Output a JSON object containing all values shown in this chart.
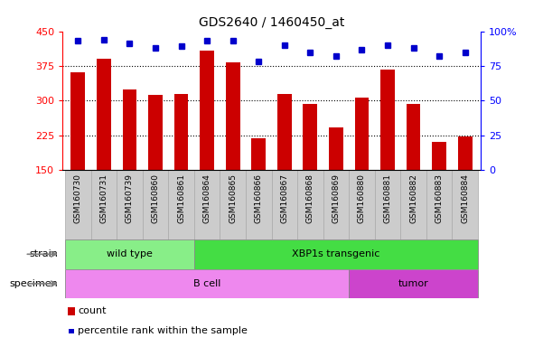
{
  "title": "GDS2640 / 1460450_at",
  "samples": [
    "GSM160730",
    "GSM160731",
    "GSM160739",
    "GSM160860",
    "GSM160861",
    "GSM160864",
    "GSM160865",
    "GSM160866",
    "GSM160867",
    "GSM160868",
    "GSM160869",
    "GSM160880",
    "GSM160881",
    "GSM160882",
    "GSM160883",
    "GSM160884"
  ],
  "counts": [
    362,
    390,
    325,
    312,
    315,
    408,
    382,
    218,
    315,
    293,
    242,
    307,
    368,
    292,
    210,
    222
  ],
  "percentiles": [
    93,
    94,
    91,
    88,
    89,
    93,
    93,
    78,
    90,
    85,
    82,
    87,
    90,
    88,
    82,
    85
  ],
  "ylim_left": [
    150,
    450
  ],
  "ylim_right": [
    0,
    100
  ],
  "yticks_left": [
    150,
    225,
    300,
    375,
    450
  ],
  "yticks_right": [
    0,
    25,
    50,
    75,
    100
  ],
  "bar_color": "#cc0000",
  "dot_color": "#0000cc",
  "strain_groups": [
    {
      "label": "wild type",
      "start": 0,
      "end": 4,
      "color": "#88ee88"
    },
    {
      "label": "XBP1s transgenic",
      "start": 5,
      "end": 15,
      "color": "#44dd44"
    }
  ],
  "specimen_groups": [
    {
      "label": "B cell",
      "start": 0,
      "end": 10,
      "color": "#ee88ee"
    },
    {
      "label": "tumor",
      "start": 11,
      "end": 15,
      "color": "#cc44cc"
    }
  ],
  "strain_label": "strain",
  "specimen_label": "specimen",
  "legend_count_label": "count",
  "legend_percentile_label": "percentile rank within the sample",
  "bar_width": 0.55,
  "background_color": "#ffffff",
  "tick_bg_color": "#cccccc",
  "tick_edge_color": "#aaaaaa"
}
